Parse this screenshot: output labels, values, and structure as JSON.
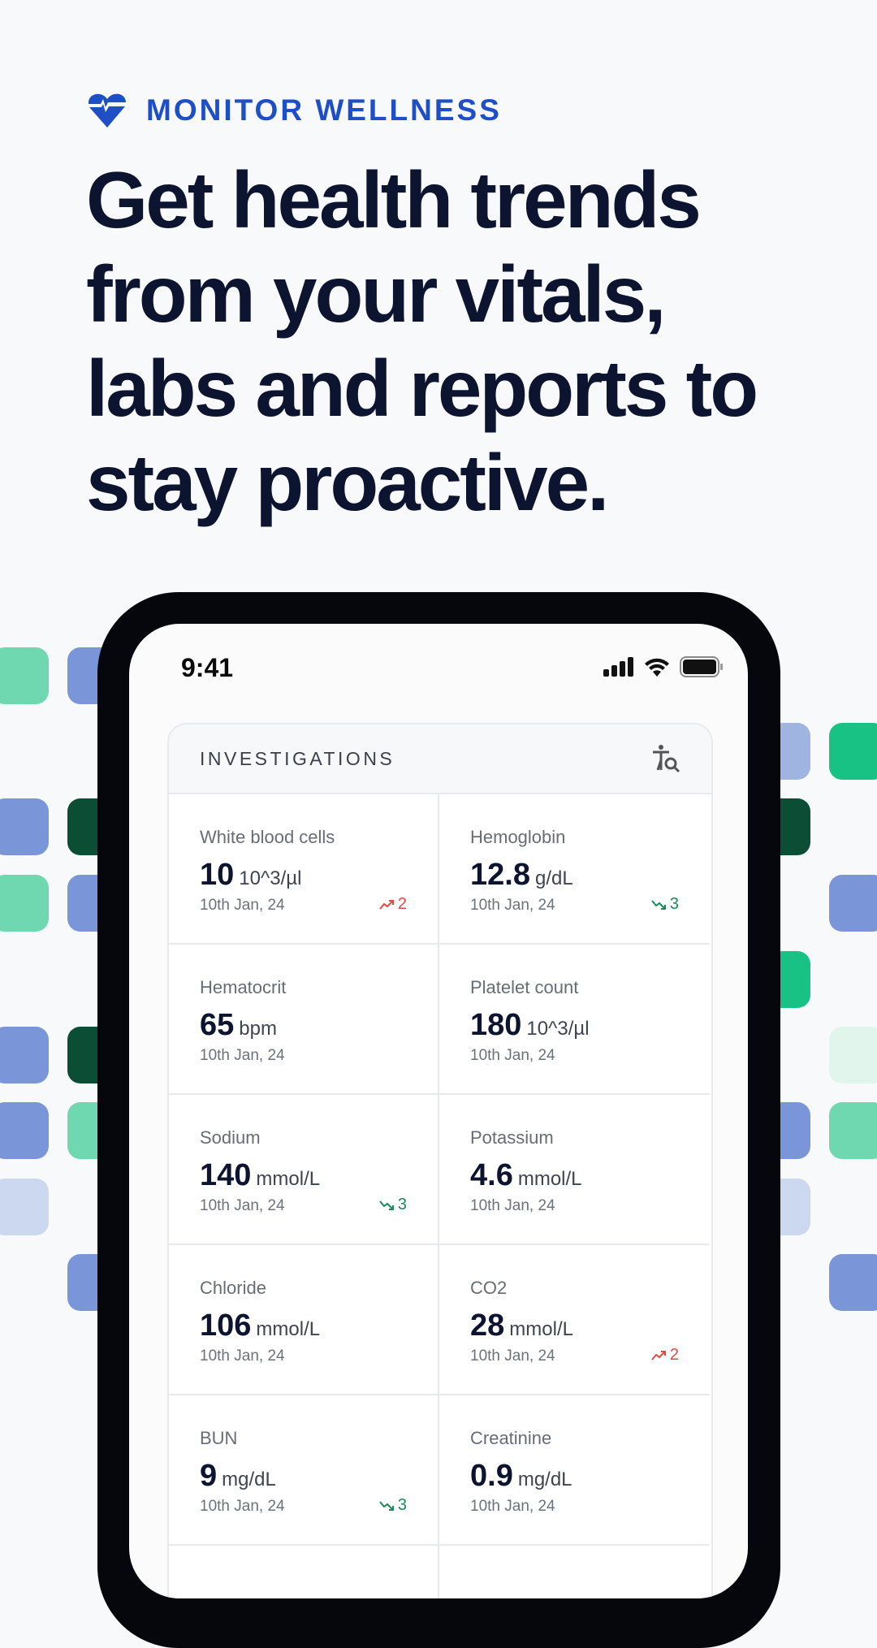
{
  "brand": {
    "label": "MONITOR WELLNESS",
    "icon": "heart-pulse-icon",
    "color": "#1f4fc6"
  },
  "headline": "Get health trends from your vitals, labs and reports to stay proactive.",
  "status_bar": {
    "time": "9:41",
    "icons": [
      "signal-icon",
      "wifi-icon",
      "battery-icon"
    ]
  },
  "card": {
    "title": "INVESTIGATIONS",
    "action_icon": "person-search-icon",
    "items": [
      {
        "label": "White blood cells",
        "value": "10",
        "unit": "10^3/µl",
        "date": "10th Jan, 24",
        "trend": {
          "dir": "up",
          "count": "2"
        }
      },
      {
        "label": "Hemoglobin",
        "value": "12.8",
        "unit": "g/dL",
        "date": "10th Jan, 24",
        "trend": {
          "dir": "down",
          "count": "3"
        }
      },
      {
        "label": "Hematocrit",
        "value": "65",
        "unit": "bpm",
        "date": "10th Jan, 24"
      },
      {
        "label": "Platelet count",
        "value": "180",
        "unit": "10^3/µl",
        "date": "10th Jan, 24"
      },
      {
        "label": "Sodium",
        "value": "140",
        "unit": "mmol/L",
        "date": "10th Jan, 24",
        "trend": {
          "dir": "down",
          "count": "3"
        }
      },
      {
        "label": "Potassium",
        "value": "4.6",
        "unit": "mmol/L",
        "date": "10th Jan, 24"
      },
      {
        "label": "Chloride",
        "value": "106",
        "unit": "mmol/L",
        "date": "10th Jan, 24"
      },
      {
        "label": "CO2",
        "value": "28",
        "unit": "mmol/L",
        "date": "10th Jan, 24",
        "trend": {
          "dir": "up",
          "count": "2"
        }
      },
      {
        "label": "BUN",
        "value": "9",
        "unit": "mg/dL",
        "date": "10th Jan, 24",
        "trend": {
          "dir": "down",
          "count": "3"
        }
      },
      {
        "label": "Creatinine",
        "value": "0.9",
        "unit": "mg/dL",
        "date": "10th Jan, 24"
      }
    ]
  },
  "colors": {
    "trend_up": "#e5483f",
    "trend_down": "#1a8a5a",
    "blue": "#7b96d8",
    "green": "#18c285",
    "light_green": "#6fd8b0",
    "dark_green": "#0b4d35",
    "light_blue": "#a0b4e2",
    "pale_blue": "#ccd7f0",
    "pale_green": "#e2f5ec"
  }
}
